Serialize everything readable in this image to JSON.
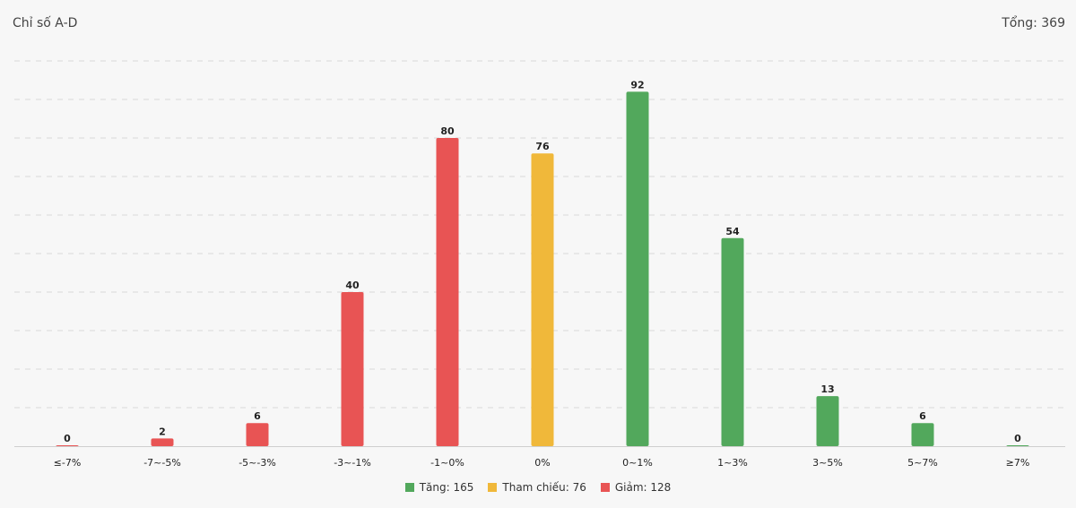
{
  "header": {
    "title": "Chỉ số A-D",
    "total": "Tổng: 369"
  },
  "colors": {
    "down": "#e85454",
    "ref": "#f0b83a",
    "up": "#52a85c",
    "grid": "#d8d8d8",
    "axis": "#cfcfcf"
  },
  "legend": [
    {
      "label": "Tăng: 165",
      "color": "#52a85c"
    },
    {
      "label": "Tham chiếu: 76",
      "color": "#f0b83a"
    },
    {
      "label": "Giảm: 128",
      "color": "#e85454"
    }
  ],
  "chart_data": {
    "type": "bar",
    "title": "Chỉ số A-D",
    "categories": [
      "≤-7%",
      "-7~-5%",
      "-5~-3%",
      "-3~-1%",
      "-1~0%",
      "0%",
      "0~1%",
      "1~3%",
      "3~5%",
      "5~7%",
      "≥7%"
    ],
    "values": [
      0,
      2,
      6,
      40,
      80,
      76,
      92,
      54,
      13,
      6,
      0
    ],
    "bar_groups": [
      "down",
      "down",
      "down",
      "down",
      "down",
      "ref",
      "up",
      "up",
      "up",
      "up",
      "up"
    ],
    "ylim": [
      0,
      100
    ],
    "grid": true,
    "legend_position": "bottom",
    "data_labels": true
  }
}
